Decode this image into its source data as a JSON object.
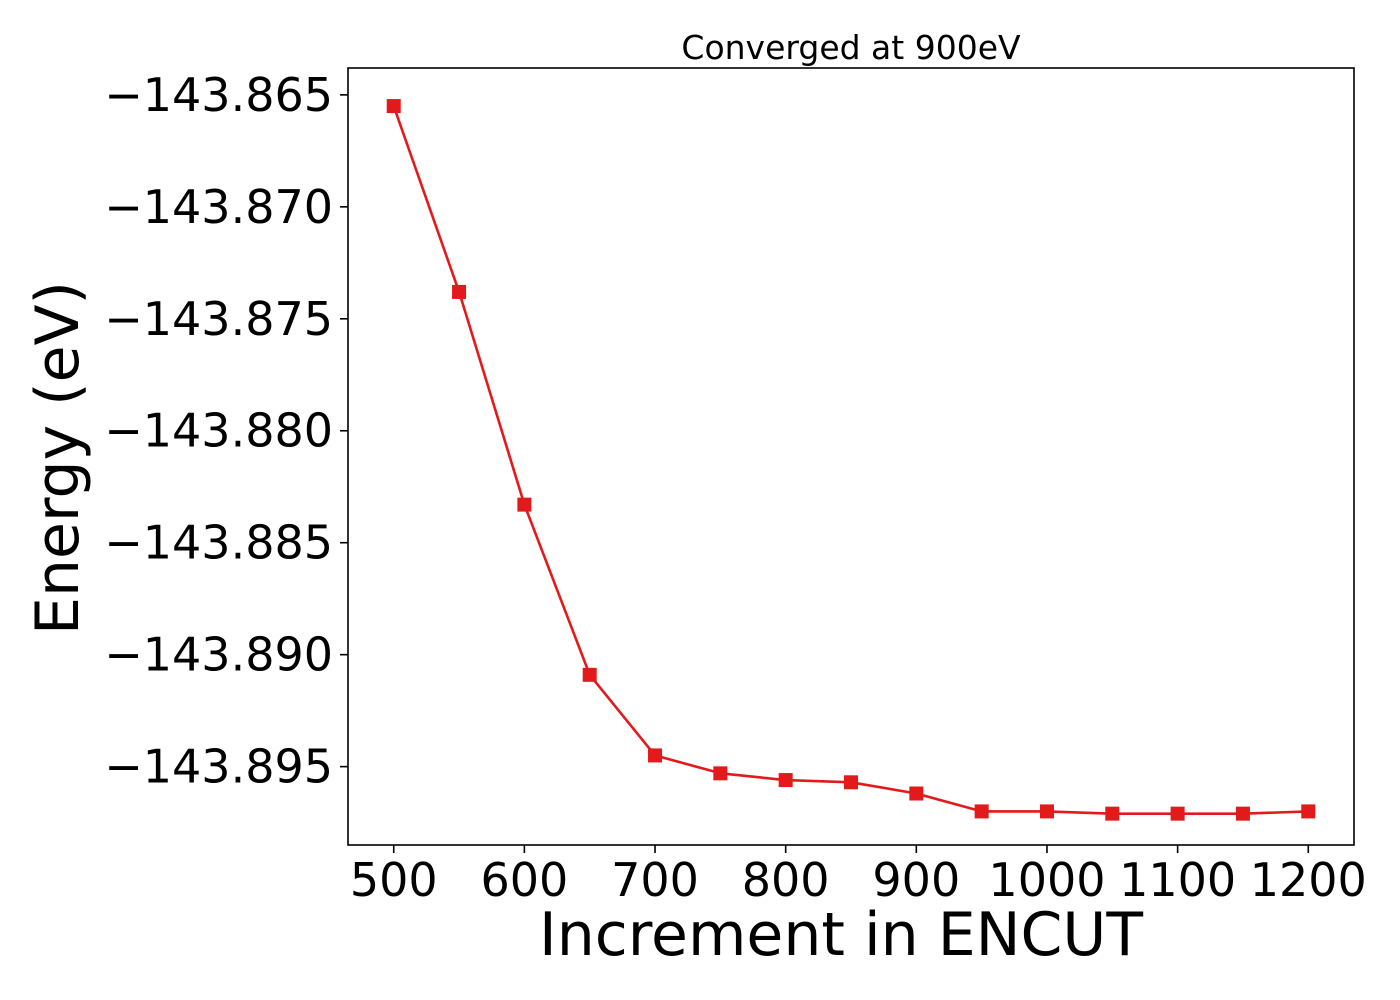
{
  "chart_data": {
    "type": "line",
    "title": "Converged at 900eV",
    "xlabel": "Increment in ENCUT",
    "ylabel": "Energy (eV)",
    "x": [
      500,
      550,
      600,
      650,
      700,
      750,
      800,
      850,
      900,
      950,
      1000,
      1050,
      1100,
      1150,
      1200
    ],
    "series": [
      {
        "values": [
          -143.8655,
          -143.8738,
          -143.8833,
          -143.8909,
          -143.8945,
          -143.8953,
          -143.8956,
          -143.8957,
          -143.8962,
          -143.897,
          -143.897,
          -143.8971,
          -143.8971,
          -143.8971,
          -143.897
        ],
        "color": "#e31a1c",
        "marker": "square"
      }
    ],
    "xlim": [
      465,
      1235
    ],
    "ylim": [
      -143.8985,
      -143.8638
    ],
    "xticks": [
      500,
      600,
      700,
      800,
      900,
      1000,
      1100,
      1200
    ],
    "xtick_labels": [
      "500",
      "600",
      "700",
      "800",
      "900",
      "1000",
      "1100",
      "1200"
    ],
    "yticks": [
      -143.865,
      -143.87,
      -143.875,
      -143.88,
      -143.885,
      -143.89,
      -143.895
    ],
    "ytick_labels": [
      "−143.865",
      "−143.870",
      "−143.875",
      "−143.880",
      "−143.885",
      "−143.890",
      "−143.895"
    ],
    "grid": false,
    "legend": "none"
  }
}
